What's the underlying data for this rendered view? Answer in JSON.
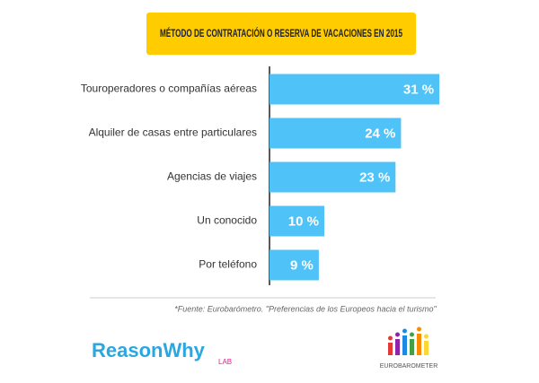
{
  "chart_data": {
    "type": "bar",
    "orientation": "horizontal",
    "title": "MÉTODO DE CONTRATACIÓN O RESERVA DE VACACIONES EN 2015",
    "categories": [
      "Touroperadores o compañías aéreas",
      "Alquiler de casas entre particulares",
      "Agencias de viajes",
      "Un conocido",
      "Por teléfono"
    ],
    "values": [
      31,
      24,
      23,
      10,
      9
    ],
    "value_labels": [
      "31 %",
      "24 %",
      "23 %",
      "10 %",
      "9 %"
    ],
    "color": "#4fc3f7",
    "source": "*Fuente: Eurobarómetro. \"Preferencias de los Europeos hacia el turismo\"",
    "logos": {
      "left": "ReasonWhy",
      "left_sub": "LAB",
      "right": "EUROBAROMETER"
    }
  }
}
